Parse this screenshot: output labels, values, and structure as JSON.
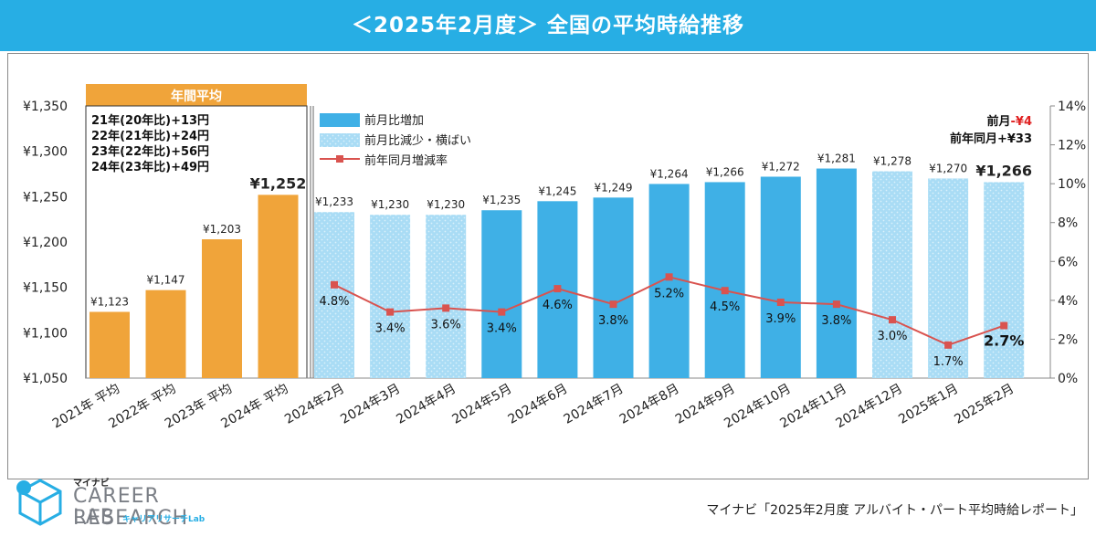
{
  "header": {
    "title": "＜2025年2月度＞ 全国の平均時給推移"
  },
  "chart_data": {
    "type": "bar",
    "title": "＜2025年2月度＞ 全国の平均時給推移",
    "categories": [
      "2021年 平均",
      "2022年 平均",
      "2023年 平均",
      "2024年 平均",
      "2024年2月",
      "2024年3月",
      "2024年4月",
      "2024年5月",
      "2024年6月",
      "2024年7月",
      "2024年8月",
      "2024年9月",
      "2024年10月",
      "2024年11月",
      "2024年12月",
      "2025年1月",
      "2025年2月"
    ],
    "y_ticks": [
      "¥1,350",
      "¥1,300",
      "¥1,250",
      "¥1,200",
      "¥1,150",
      "¥1,100",
      "¥1,050"
    ],
    "y_ticks_right": [
      "14%",
      "12%",
      "10%",
      "8%",
      "6%",
      "4%",
      "2%",
      "0%"
    ],
    "ylim": [
      1050,
      1350
    ],
    "ylim_right": [
      0,
      14
    ],
    "series": [
      {
        "name": "年間平均",
        "color": "#f0a43a",
        "values": [
          1123,
          1147,
          1203,
          1252,
          null,
          null,
          null,
          null,
          null,
          null,
          null,
          null,
          null,
          null,
          null,
          null,
          null
        ]
      },
      {
        "name": "前月比増加",
        "color": "#3fb0e6",
        "values": [
          null,
          null,
          null,
          null,
          null,
          null,
          null,
          1235,
          1245,
          1249,
          1264,
          1266,
          1272,
          1281,
          null,
          null,
          null
        ]
      },
      {
        "name": "前月比減少・横ばい",
        "color": "#a9dcf5",
        "values": [
          null,
          null,
          null,
          null,
          1233,
          1230,
          1230,
          null,
          null,
          null,
          null,
          null,
          null,
          null,
          1278,
          1270,
          1266
        ]
      },
      {
        "name": "前年同月増減率",
        "color": "#d9534f",
        "axis": "right",
        "values": [
          null,
          null,
          null,
          null,
          4.8,
          3.4,
          3.6,
          3.4,
          4.6,
          3.8,
          5.2,
          4.5,
          3.9,
          3.8,
          3.0,
          1.7,
          2.7
        ]
      }
    ],
    "bar_labels": [
      "¥1,123",
      "¥1,147",
      "¥1,203",
      "¥1,252",
      "¥1,233",
      "¥1,230",
      "¥1,230",
      "¥1,235",
      "¥1,245",
      "¥1,249",
      "¥1,264",
      "¥1,266",
      "¥1,272",
      "¥1,281",
      "¥1,278",
      "¥1,270",
      "¥1,266"
    ],
    "rate_labels": [
      "4.8%",
      "3.4%",
      "3.6%",
      "3.4%",
      "4.6%",
      "3.8%",
      "5.2%",
      "4.5%",
      "3.9%",
      "3.8%",
      "3.0%",
      "1.7%",
      "2.7%"
    ],
    "annual_header": "年間平均",
    "annual_notes": [
      "21年(20年比)+13円",
      "22年(21年比)+24円",
      "23年(22年比)+56円",
      "24年(23年比)+49円"
    ],
    "legend": [
      "前月比増加",
      "前月比減少・横ばい",
      "前年同月増減率"
    ],
    "callout": {
      "mom_label": "前月",
      "mom_value": "-¥4",
      "yoy_label": "前年同月",
      "yoy_value": "+¥33"
    }
  },
  "footer": {
    "brand_small": "マイナビ",
    "brand_line1": "CAREER RESEARCH",
    "brand_line2": "LAB",
    "brand_kana": "キャリアリサーチLab",
    "source": "マイナビ「2025年2月度 アルバイト・パート平均時給レポート」"
  },
  "colors": {
    "title_bg": "#27aee4",
    "annual": "#f0a43a",
    "increase": "#3fb0e6",
    "decrease": "#a9dcf5",
    "line": "#d9534f",
    "negative": "#e02020"
  }
}
